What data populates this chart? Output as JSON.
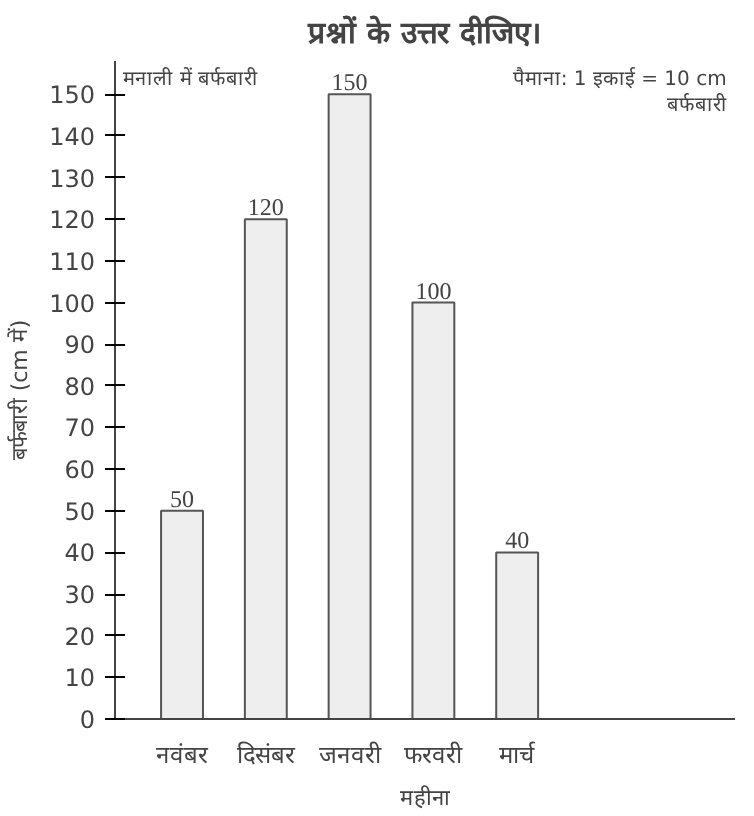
{
  "chart_data": {
    "type": "bar",
    "title": "प्रश्नों के उत्तर दीजिए।",
    "xlabel": "महीना",
    "ylabel": "बर्फबारी (cm में)",
    "annotations": [
      "मनाली में बर्फबारी",
      "पैमाना: 1 इकाई = 10 cm बर्फबारी"
    ],
    "categories": [
      "नवंबर",
      "दिसंबर",
      "जनवरी",
      "फरवरी",
      "मार्च"
    ],
    "values": [
      50,
      120,
      150,
      100,
      40
    ],
    "color": "#eeeeee",
    "ylim": [
      0,
      158
    ],
    "yticks": [
      0,
      10,
      20,
      30,
      40,
      50,
      60,
      70,
      80,
      90,
      100,
      110,
      120,
      130,
      140,
      150
    ],
    "data_labels": true,
    "grid": false
  }
}
